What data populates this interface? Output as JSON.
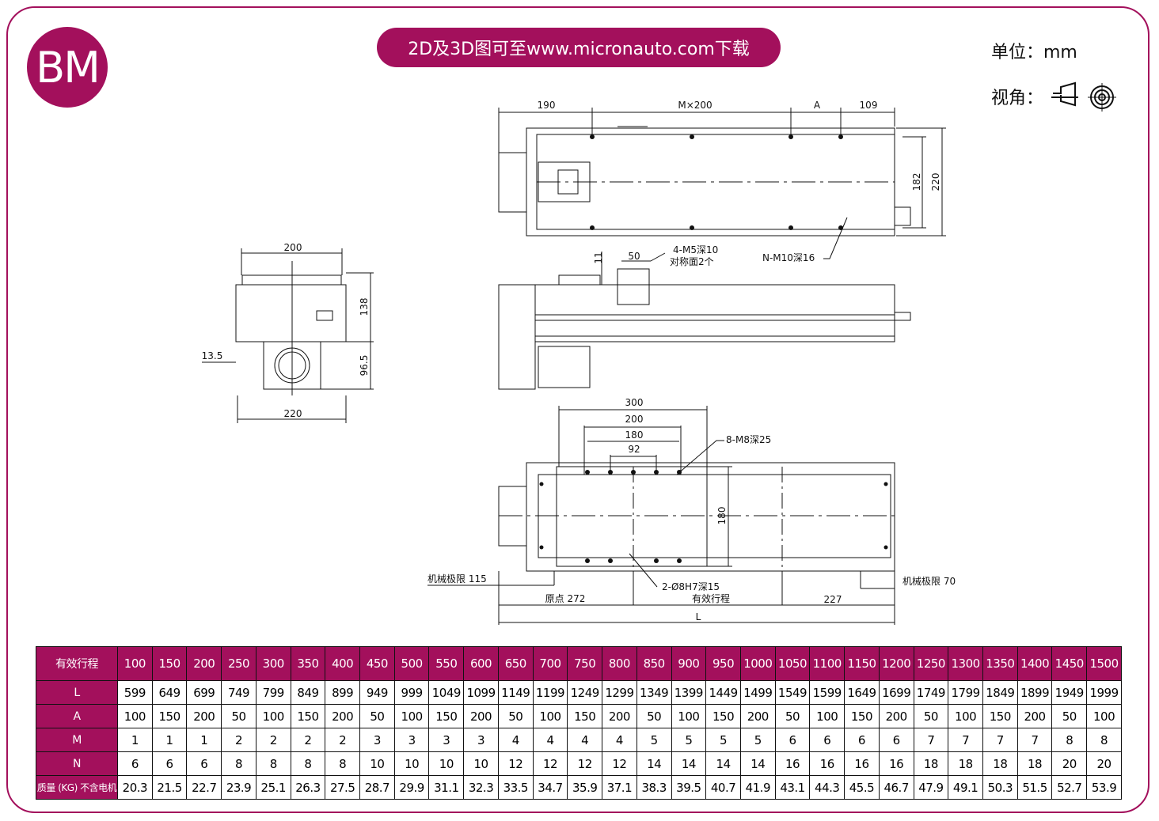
{
  "logo": "BM",
  "banner": "2D及3D图可至www.micronauto.com下载",
  "unit_label": "单位：mm",
  "view_label": "视角：",
  "colors": {
    "brand": "#a3105c",
    "line": "#111111"
  },
  "drawing": {
    "top_dims": [
      "190",
      "M×200",
      "A",
      "109"
    ],
    "top_vert": [
      "182",
      "220"
    ],
    "side_labels": {
      "h11": "11",
      "w50": "50",
      "m5": "4-M5深10",
      "m5b": "对称面2个",
      "m10": "N-M10深16"
    },
    "end_view": {
      "w200": "200",
      "h138": "138",
      "h96": "96.5",
      "w220": "220",
      "o135": "13.5"
    },
    "bottom_dims": {
      "d300": "300",
      "d200": "200",
      "d180": "180",
      "d92": "92",
      "v180": "180",
      "m8": "8-M8深25",
      "pin": "2-Ø8H7深15",
      "limit_left": "机械极限 115",
      "limit_right": "机械极限 70",
      "origin": "原点 272",
      "stroke": "有效行程",
      "end227": "227",
      "L": "L"
    }
  },
  "table": {
    "header_label": "有效行程",
    "strokes": [
      "100",
      "150",
      "200",
      "250",
      "300",
      "350",
      "400",
      "450",
      "500",
      "550",
      "600",
      "650",
      "700",
      "750",
      "800",
      "850",
      "900",
      "950",
      "1000",
      "1050",
      "1100",
      "1150",
      "1200",
      "1250",
      "1300",
      "1350",
      "1400",
      "1450",
      "1500"
    ],
    "rows": [
      {
        "label": "L",
        "values": [
          "599",
          "649",
          "699",
          "749",
          "799",
          "849",
          "899",
          "949",
          "999",
          "1049",
          "1099",
          "1149",
          "1199",
          "1249",
          "1299",
          "1349",
          "1399",
          "1449",
          "1499",
          "1549",
          "1599",
          "1649",
          "1699",
          "1749",
          "1799",
          "1849",
          "1899",
          "1949",
          "1999"
        ]
      },
      {
        "label": "A",
        "values": [
          "100",
          "150",
          "200",
          "50",
          "100",
          "150",
          "200",
          "50",
          "100",
          "150",
          "200",
          "50",
          "100",
          "150",
          "200",
          "50",
          "100",
          "150",
          "200",
          "50",
          "100",
          "150",
          "200",
          "50",
          "100",
          "150",
          "200",
          "50",
          "100"
        ]
      },
      {
        "label": "M",
        "values": [
          "1",
          "1",
          "1",
          "2",
          "2",
          "2",
          "2",
          "3",
          "3",
          "3",
          "3",
          "4",
          "4",
          "4",
          "4",
          "5",
          "5",
          "5",
          "5",
          "6",
          "6",
          "6",
          "6",
          "7",
          "7",
          "7",
          "7",
          "8",
          "8"
        ]
      },
      {
        "label": "N",
        "values": [
          "6",
          "6",
          "6",
          "8",
          "8",
          "8",
          "8",
          "10",
          "10",
          "10",
          "10",
          "12",
          "12",
          "12",
          "12",
          "14",
          "14",
          "14",
          "14",
          "16",
          "16",
          "16",
          "16",
          "18",
          "18",
          "18",
          "18",
          "20",
          "20"
        ]
      },
      {
        "label": "质量 (KG) 不含电机",
        "values": [
          "20.3",
          "21.5",
          "22.7",
          "23.9",
          "25.1",
          "26.3",
          "27.5",
          "28.7",
          "29.9",
          "31.1",
          "32.3",
          "33.5",
          "34.7",
          "35.9",
          "37.1",
          "38.3",
          "39.5",
          "40.7",
          "41.9",
          "43.1",
          "44.3",
          "45.5",
          "46.7",
          "47.9",
          "49.1",
          "50.3",
          "51.5",
          "52.7",
          "53.9"
        ]
      }
    ]
  }
}
